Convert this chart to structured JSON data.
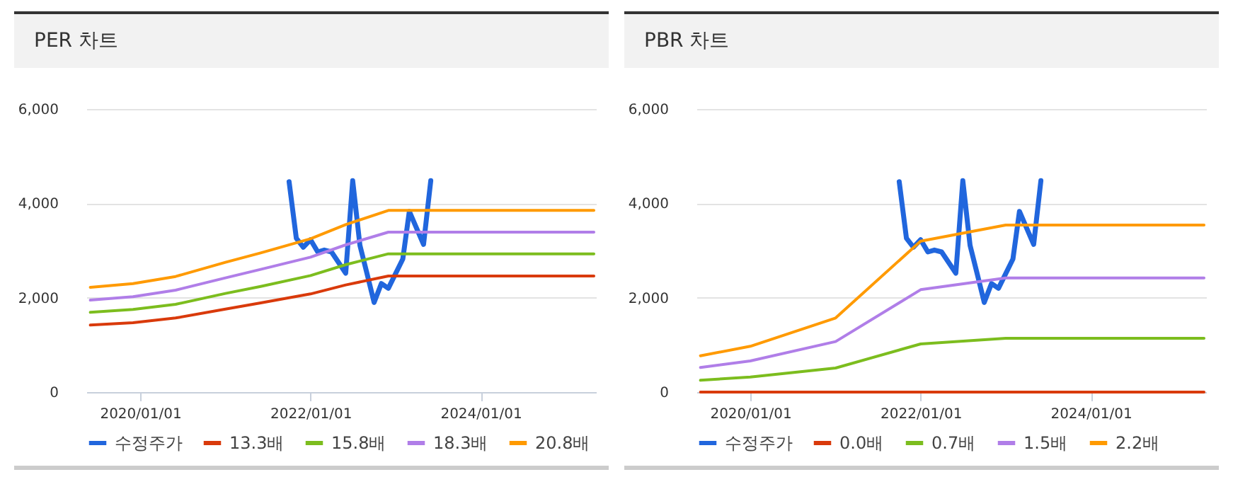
{
  "chart_data": [
    {
      "type": "line",
      "title": "PER 차트",
      "xlim": [
        "2019-05-15",
        "2025-05-10"
      ],
      "xticks": [
        {
          "value": "2020-01-01",
          "label": "2020/01/01"
        },
        {
          "value": "2022-01-01",
          "label": "2022/01/01"
        },
        {
          "value": "2024-01-01",
          "label": "2024/01/01"
        }
      ],
      "ylim": [
        0,
        6000
      ],
      "yticks": [
        0,
        {
          "value": 2000,
          "label": "2,000"
        },
        {
          "value": 4000,
          "label": "4,000"
        },
        {
          "value": 6000,
          "label": "6,000"
        }
      ],
      "grid": "y",
      "legend": "bottom",
      "series": [
        {
          "name": "수정주가",
          "color": "#2166dd",
          "x": [
            "2021-10-01",
            "2021-11-01",
            "2021-12-01",
            "2022-01-01",
            "2022-02-01",
            "2022-03-01",
            "2022-04-01",
            "2022-06-01",
            "2022-07-01",
            "2022-08-01",
            "2022-09-01",
            "2022-10-01",
            "2022-11-01",
            "2022-12-01",
            "2023-02-01",
            "2023-03-01",
            "2023-05-01",
            "2023-06-01"
          ],
          "values": [
            4460,
            3260,
            3070,
            3230,
            2970,
            3010,
            2970,
            2520,
            4480,
            3110,
            2500,
            1900,
            2300,
            2200,
            2820,
            3830,
            3130,
            4480
          ]
        },
        {
          "name": "13.3배",
          "color": "#d93a0b",
          "x": [
            "2019-06-01",
            "2019-12-01",
            "2020-06-01",
            "2021-01-01",
            "2021-06-01",
            "2022-01-01",
            "2022-06-01",
            "2022-12-01",
            "2025-05-01"
          ],
          "values": [
            1420,
            1470,
            1570,
            1760,
            1890,
            2080,
            2270,
            2460,
            2460
          ]
        },
        {
          "name": "15.8배",
          "color": "#7cbd1e",
          "x": [
            "2019-06-01",
            "2019-12-01",
            "2020-06-01",
            "2021-01-01",
            "2021-06-01",
            "2022-01-01",
            "2022-06-01",
            "2022-12-01",
            "2025-05-01"
          ],
          "values": [
            1690,
            1750,
            1860,
            2090,
            2240,
            2470,
            2700,
            2930,
            2930
          ]
        },
        {
          "name": "18.3배",
          "color": "#b07ee8",
          "x": [
            "2019-06-01",
            "2019-12-01",
            "2020-06-01",
            "2021-01-01",
            "2021-06-01",
            "2022-01-01",
            "2022-06-01",
            "2022-12-01",
            "2025-05-01"
          ],
          "values": [
            1950,
            2020,
            2160,
            2420,
            2600,
            2860,
            3120,
            3390,
            3390
          ]
        },
        {
          "name": "20.8배",
          "color": "#ff9a00",
          "x": [
            "2019-06-01",
            "2019-12-01",
            "2020-06-01",
            "2021-01-01",
            "2021-06-01",
            "2022-01-01",
            "2022-06-01",
            "2022-12-01",
            "2025-05-01"
          ],
          "values": [
            2220,
            2300,
            2450,
            2750,
            2950,
            3250,
            3550,
            3850,
            3850
          ]
        }
      ]
    },
    {
      "type": "line",
      "title": "PBR 차트",
      "xlim": [
        "2019-05-15",
        "2025-05-10"
      ],
      "xticks": [
        {
          "value": "2020-01-01",
          "label": "2020/01/01"
        },
        {
          "value": "2022-01-01",
          "label": "2022/01/01"
        },
        {
          "value": "2024-01-01",
          "label": "2024/01/01"
        }
      ],
      "ylim": [
        0,
        6000
      ],
      "yticks": [
        0,
        {
          "value": 2000,
          "label": "2,000"
        },
        {
          "value": 4000,
          "label": "4,000"
        },
        {
          "value": 6000,
          "label": "6,000"
        }
      ],
      "grid": "y",
      "legend": "bottom",
      "series": [
        {
          "name": "수정주가",
          "color": "#2166dd",
          "x": [
            "2021-10-01",
            "2021-11-01",
            "2021-12-01",
            "2022-01-01",
            "2022-02-01",
            "2022-03-01",
            "2022-04-01",
            "2022-06-01",
            "2022-07-01",
            "2022-08-01",
            "2022-09-01",
            "2022-10-01",
            "2022-11-01",
            "2022-12-01",
            "2023-02-01",
            "2023-03-01",
            "2023-05-01",
            "2023-06-01"
          ],
          "values": [
            4460,
            3260,
            3070,
            3230,
            2970,
            3010,
            2970,
            2520,
            4480,
            3110,
            2500,
            1900,
            2300,
            2200,
            2820,
            3830,
            3130,
            4480
          ]
        },
        {
          "name": "0.0배",
          "color": "#d93a0b",
          "x": [
            "2019-06-01",
            "2025-05-01"
          ],
          "values": [
            0,
            0
          ]
        },
        {
          "name": "0.7배",
          "color": "#7cbd1e",
          "x": [
            "2019-06-01",
            "2020-01-01",
            "2021-01-01",
            "2022-01-01",
            "2023-01-01",
            "2025-05-01"
          ],
          "values": [
            250,
            320,
            510,
            1020,
            1140,
            1140
          ]
        },
        {
          "name": "1.5배",
          "color": "#b07ee8",
          "x": [
            "2019-06-01",
            "2020-01-01",
            "2021-01-01",
            "2022-01-01",
            "2023-01-01",
            "2025-05-01"
          ],
          "values": [
            520,
            660,
            1070,
            2170,
            2420,
            2420
          ]
        },
        {
          "name": "2.2배",
          "color": "#ff9a00",
          "x": [
            "2019-06-01",
            "2020-01-01",
            "2021-01-01",
            "2022-01-01",
            "2023-01-01",
            "2025-05-01"
          ],
          "values": [
            770,
            970,
            1570,
            3200,
            3540,
            3540
          ]
        }
      ]
    }
  ]
}
